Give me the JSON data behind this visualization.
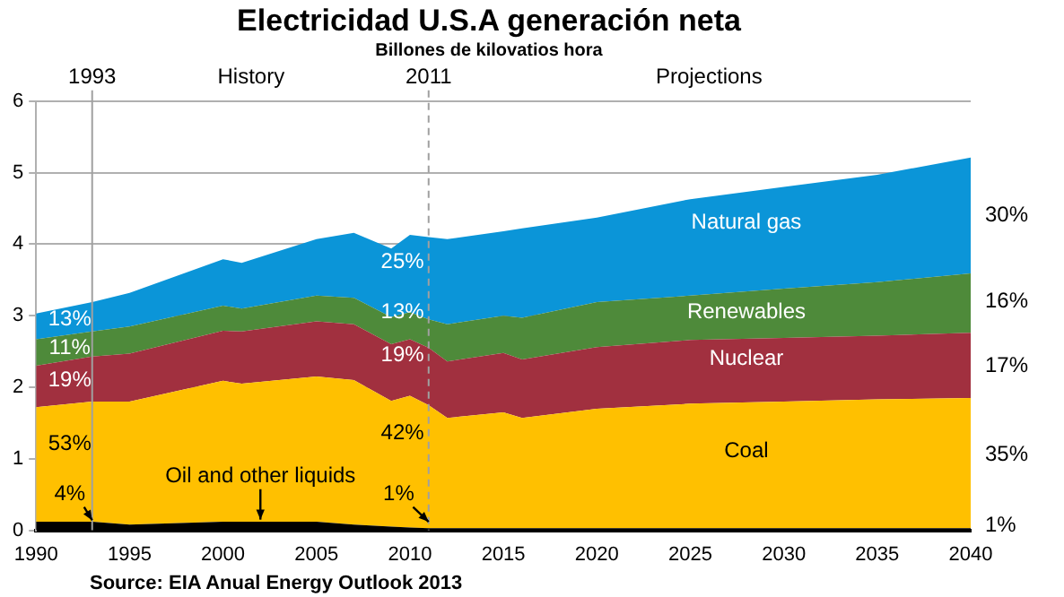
{
  "chart_data": {
    "type": "area",
    "title": "Electricidad U.S.A generación neta",
    "subtitle": "Billones de kilovatios hora",
    "stacked": true,
    "x": [
      1990,
      1993,
      1995,
      2000,
      2001,
      2005,
      2007,
      2009,
      2010,
      2011,
      2012,
      2015,
      2016,
      2020,
      2025,
      2030,
      2035,
      2040
    ],
    "series": [
      {
        "color": "#000000",
        "values": [
          0.12,
          0.12,
          0.08,
          0.12,
          0.12,
          0.12,
          0.08,
          0.05,
          0.04,
          0.03,
          0.03,
          0.03,
          0.03,
          0.03,
          0.03,
          0.03,
          0.03,
          0.03
        ]
      },
      {
        "color": "#ffc000",
        "values": [
          1.6,
          1.68,
          1.72,
          1.97,
          1.93,
          2.03,
          2.02,
          1.76,
          1.84,
          1.72,
          1.54,
          1.62,
          1.54,
          1.67,
          1.74,
          1.77,
          1.8,
          1.82
        ]
      },
      {
        "color": "#a1303f",
        "values": [
          0.58,
          0.63,
          0.67,
          0.7,
          0.73,
          0.77,
          0.78,
          0.79,
          0.79,
          0.8,
          0.79,
          0.83,
          0.82,
          0.86,
          0.89,
          0.89,
          0.89,
          0.91
        ]
      },
      {
        "color": "#4e8a3a",
        "values": [
          0.37,
          0.35,
          0.38,
          0.35,
          0.32,
          0.36,
          0.37,
          0.38,
          0.38,
          0.4,
          0.52,
          0.52,
          0.58,
          0.63,
          0.62,
          0.69,
          0.75,
          0.83
        ]
      },
      {
        "color": "#0b95d8",
        "values": [
          0.36,
          0.41,
          0.47,
          0.65,
          0.64,
          0.79,
          0.91,
          0.96,
          1.08,
          1.15,
          1.19,
          1.18,
          1.25,
          1.18,
          1.35,
          1.42,
          1.5,
          1.62
        ]
      }
    ],
    "xlim": [
      1990,
      2040
    ],
    "xticks": [
      1990,
      1995,
      2000,
      2005,
      2010,
      2015,
      2020,
      2025,
      2030,
      2035,
      2040
    ],
    "ylim": [
      0,
      6
    ],
    "yticks": [
      0,
      1,
      2,
      3,
      4,
      5,
      6
    ],
    "grid": "y",
    "ref_lines": [
      {
        "axis": "x",
        "value": 1993,
        "label": "1993",
        "color": "#a0a0a0",
        "line_style": "solid"
      },
      {
        "axis": "x",
        "value": 2011,
        "label": "2011",
        "color": "#a0a0a0",
        "line_style": "dashed"
      }
    ],
    "annotations": [
      "History",
      "Projections",
      "Source: EIA Anual Energy Outlook 2013",
      "13%",
      "11%",
      "19%",
      "53%",
      "4%",
      "Oil and other liquids",
      "25%",
      "13%",
      "19%",
      "42%",
      "1%",
      "Natural gas",
      "Renewables",
      "Nuclear",
      "Coal",
      "30%",
      "16%",
      "17%",
      "35%",
      "1%"
    ]
  }
}
